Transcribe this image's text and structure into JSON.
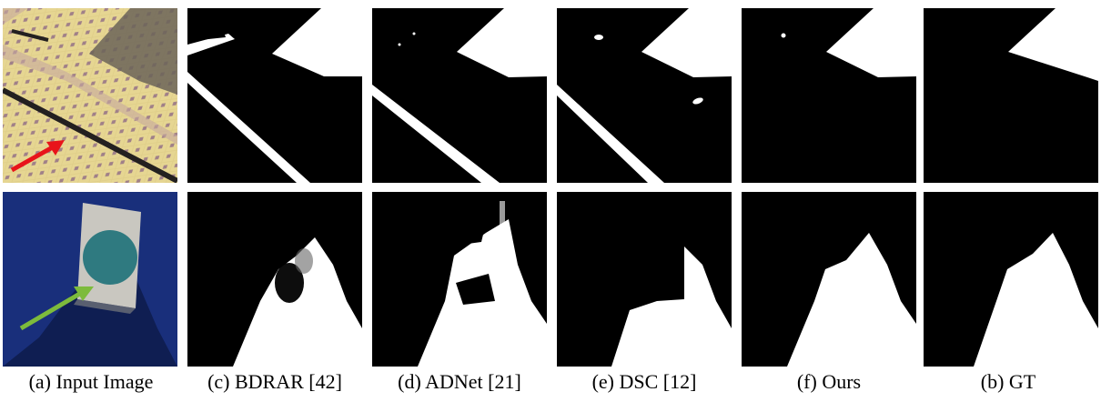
{
  "captions": {
    "input": "(a) Input Image",
    "bdrar": "(c) BDRAR [42]",
    "adnet": "(d) ADNet [21]",
    "dsc": "(e) DSC [12]",
    "ours": "(f) Ours",
    "gt": "(b) GT"
  },
  "colors": {
    "mask_shadow": "#000000",
    "mask_nonshadow": "#ffffff",
    "red_arrow": "#e8141a",
    "green_arrow": "#7dbb3c"
  }
}
